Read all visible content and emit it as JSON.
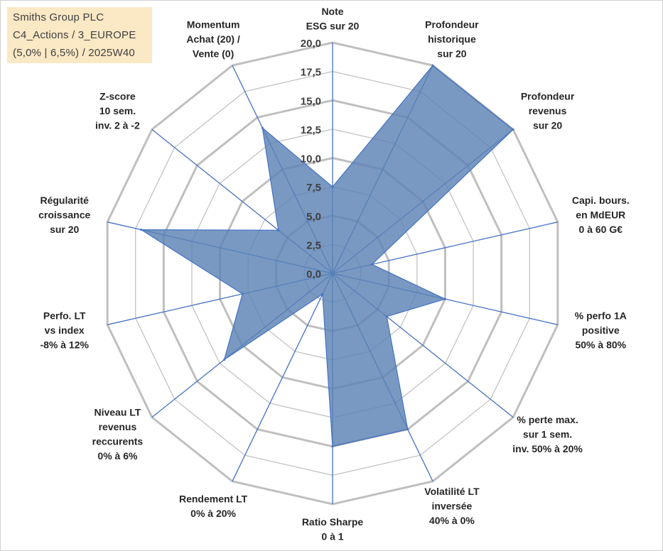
{
  "title_box": {
    "lines": [
      "Smiths Group PLC",
      "C4_Actions / 3_EUROPE",
      "(5,0% | 6,5%) / 2025W40"
    ]
  },
  "chart_data": {
    "type": "radar",
    "title": "Smiths Group PLC",
    "scale": {
      "min": 0,
      "max": 20,
      "step": 2.5
    },
    "tick_labels": [
      "0,0",
      "2,5",
      "5,0",
      "7,5",
      "10,0",
      "12,5",
      "15,0",
      "17,5",
      "20,0"
    ],
    "axes": [
      {
        "label": [
          "Note",
          "ESG sur 20"
        ],
        "value": 7.5
      },
      {
        "label": [
          "Profondeur",
          "historique",
          "sur 20"
        ],
        "value": 20.0
      },
      {
        "label": [
          "Profondeur",
          "revenus",
          "sur 20"
        ],
        "value": 20.0
      },
      {
        "label": [
          "Capi. bours.",
          "en MdEUR",
          "0 à 60 G€"
        ],
        "value": 3.5
      },
      {
        "label": [
          "% perfo 1A",
          "positive",
          "50% à 80%"
        ],
        "value": 10.0
      },
      {
        "label": [
          "% perte max.",
          "sur 1 sem.",
          "inv. 50% à 20%"
        ],
        "value": 6.0
      },
      {
        "label": [
          "Volatilité LT",
          "inversée",
          "40% à 0%"
        ],
        "value": 15.0
      },
      {
        "label": [
          "Ratio Sharpe",
          "0 à 1"
        ],
        "value": 15.0
      },
      {
        "label": [
          "Rendement LT",
          "0% à 20%"
        ],
        "value": 2.0
      },
      {
        "label": [
          "Niveau LT",
          "revenus",
          "reccurents",
          "0% à 6%"
        ],
        "value": 12.0
      },
      {
        "label": [
          "Perfo. LT",
          "vs index",
          "-8% à 12%"
        ],
        "value": 8.0
      },
      {
        "label": [
          "Régularité",
          "croissance",
          "sur 20"
        ],
        "value": 17.0
      },
      {
        "label": [
          "Z-score",
          "10 sem.",
          "inv. 2 à -2"
        ],
        "value": 6.0
      },
      {
        "label": [
          "Momentum",
          "Achat (20) /",
          "Vente (0)"
        ],
        "value": 14.0
      }
    ],
    "series": [
      {
        "name": "Smiths Group PLC",
        "color": "#5b82b5"
      }
    ],
    "grid": true,
    "legend": "none"
  }
}
